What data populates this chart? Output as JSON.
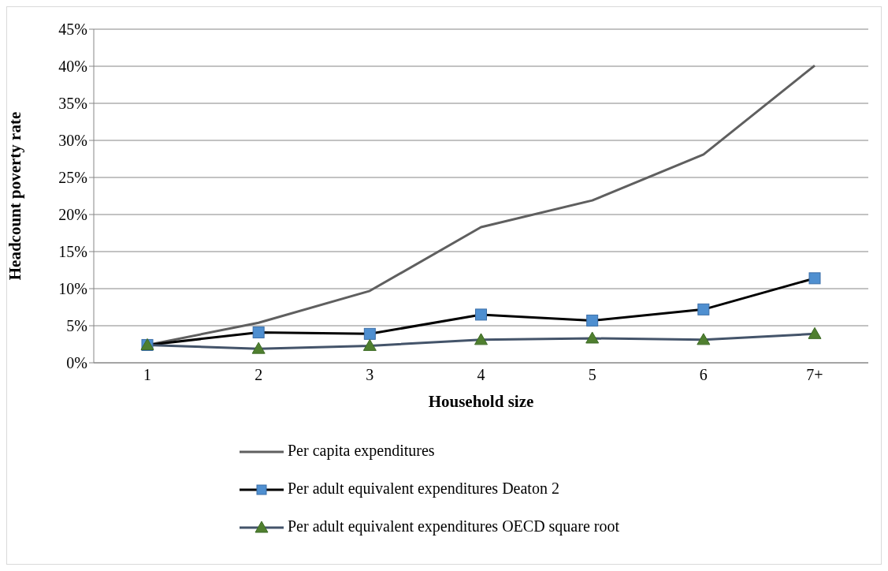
{
  "chart_data": {
    "type": "line",
    "xlabel": "Household size",
    "ylabel": "Headcount poverty rate",
    "categories": [
      "1",
      "2",
      "3",
      "4",
      "5",
      "6",
      "7+"
    ],
    "series": [
      {
        "name": "Per capita expenditures",
        "color": "#5f5f5f",
        "marker": "none",
        "values": [
          2.4,
          5.4,
          9.7,
          18.3,
          21.9,
          28.1,
          40.1
        ]
      },
      {
        "name": "Per adult equivalent expenditures Deaton 2",
        "color": "#000000",
        "marker": "square",
        "colors": [
          "#4f8fd0",
          "#4f8fd0",
          "#4f8fd0",
          "#4f8fd0",
          "#4f8fd0",
          "#4f8fd0",
          "#4f8fd0"
        ],
        "values": [
          2.4,
          4.1,
          3.9,
          6.5,
          5.7,
          7.2,
          11.4
        ]
      },
      {
        "name": "Per adult equivalent expenditures OECD square root",
        "color": "#44546a",
        "marker": "triangle",
        "colors": [
          "#4f7f2f",
          "#4f7f2f",
          "#4f7f2f",
          "#4f7f2f",
          "#4f7f2f",
          "#4f7f2f",
          "#4f7f2f"
        ],
        "values": [
          2.4,
          1.9,
          2.3,
          3.1,
          3.3,
          3.1,
          3.9
        ]
      }
    ],
    "ylim": [
      0,
      45
    ],
    "yticks": [
      {
        "value": 0,
        "label": "0%"
      },
      {
        "value": 5,
        "label": "5%"
      },
      {
        "value": 10,
        "label": "10%"
      },
      {
        "value": 15,
        "label": "15%"
      },
      {
        "value": 20,
        "label": "20%"
      },
      {
        "value": 25,
        "label": "25%"
      },
      {
        "value": 30,
        "label": "30%"
      },
      {
        "value": 35,
        "label": "35%"
      },
      {
        "value": 40,
        "label": "40%"
      },
      {
        "value": 45,
        "label": "45%"
      }
    ],
    "grid": "y",
    "legend": "bottom"
  }
}
